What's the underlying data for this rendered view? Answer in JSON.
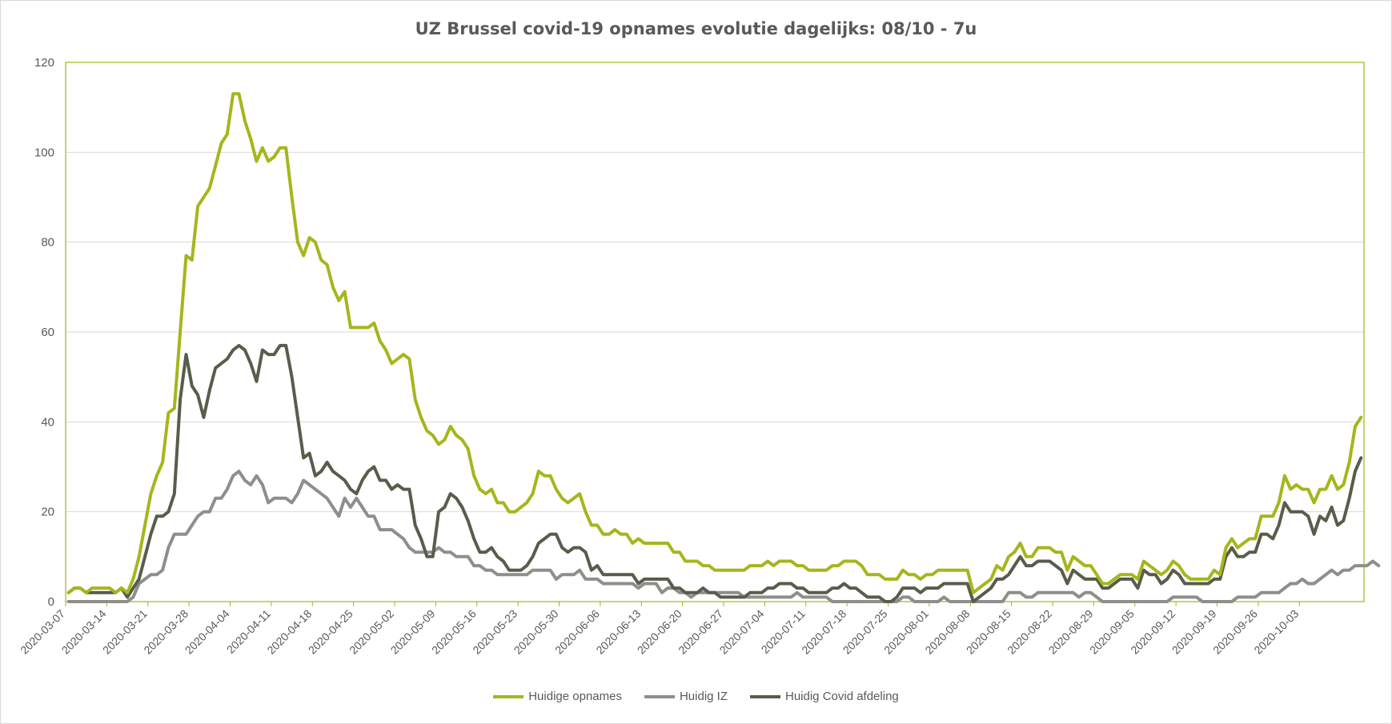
{
  "chart_data": {
    "type": "line",
    "title": "UZ Brussel covid-19 opnames evolutie dagelijks: 08/10 - 7u",
    "xlabel": "",
    "ylabel": "",
    "ylim": [
      0,
      120
    ],
    "yticks": [
      0,
      20,
      40,
      60,
      80,
      100,
      120
    ],
    "x_start": "2020-03-07",
    "x_tick_labels": [
      "2020-03-07",
      "2020-03-14",
      "2020-03-21",
      "2020-03-28",
      "2020-04-04",
      "2020-04-11",
      "2020-04-18",
      "2020-04-25",
      "2020-05-02",
      "2020-05-09",
      "2020-05-16",
      "2020-05-23",
      "2020-05-30",
      "2020-06-06",
      "2020-06-13",
      "2020-06-20",
      "2020-06-27",
      "2020-07-04",
      "2020-07-11",
      "2020-07-18",
      "2020-07-25",
      "2020-08-01",
      "2020-08-08",
      "2020-08-15",
      "2020-08-22",
      "2020-08-29",
      "2020-09-05",
      "2020-09-12",
      "2020-09-19",
      "2020-09-26",
      "2020-10-03"
    ],
    "grid": "horizontal",
    "legend_position": "bottom",
    "series": [
      {
        "name": "Huidige opnames",
        "color": "#a5b61c",
        "values": [
          2,
          3,
          3,
          2,
          3,
          3,
          3,
          3,
          2,
          3,
          2,
          5,
          10,
          17,
          24,
          28,
          31,
          42,
          43,
          60,
          77,
          76,
          88,
          90,
          92,
          97,
          102,
          104,
          113,
          113,
          107,
          103,
          98,
          101,
          98,
          99,
          101,
          101,
          90,
          80,
          77,
          81,
          80,
          76,
          75,
          70,
          67,
          69,
          61,
          61,
          61,
          61,
          62,
          58,
          56,
          53,
          54,
          55,
          54,
          45,
          41,
          38,
          37,
          35,
          36,
          39,
          37,
          36,
          34,
          28,
          25,
          24,
          25,
          22,
          22,
          20,
          20,
          21,
          22,
          24,
          29,
          28,
          28,
          25,
          23,
          22,
          23,
          24,
          20,
          17,
          17,
          15,
          15,
          16,
          15,
          15,
          13,
          14,
          13,
          13,
          13,
          13,
          13,
          11,
          11,
          9,
          9,
          9,
          8,
          8,
          7,
          7,
          7,
          7,
          7,
          7,
          8,
          8,
          8,
          9,
          8,
          9,
          9,
          9,
          8,
          8,
          7,
          7,
          7,
          7,
          8,
          8,
          9,
          9,
          9,
          8,
          6,
          6,
          6,
          5,
          5,
          5,
          7,
          6,
          6,
          5,
          6,
          6,
          7,
          7,
          7,
          7,
          7,
          7,
          2,
          3,
          4,
          5,
          8,
          7,
          10,
          11,
          13,
          10,
          10,
          12,
          12,
          12,
          11,
          11,
          7,
          10,
          9,
          8,
          8,
          6,
          4,
          4,
          5,
          6,
          6,
          6,
          5,
          9,
          8,
          7,
          6,
          7,
          9,
          8,
          6,
          5,
          5,
          5,
          5,
          7,
          6,
          12,
          14,
          12,
          13,
          14,
          14,
          19,
          19,
          19,
          22,
          28,
          25,
          26,
          25,
          25,
          22,
          25,
          25,
          28,
          25,
          26,
          31,
          39,
          41
        ]
      },
      {
        "name": "Huidig IZ",
        "color": "#8c8f8a",
        "values": [
          0,
          0,
          0,
          0,
          0,
          0,
          0,
          0,
          0,
          0,
          0,
          1,
          4,
          5,
          6,
          6,
          7,
          12,
          15,
          15,
          15,
          17,
          19,
          20,
          20,
          23,
          23,
          25,
          28,
          29,
          27,
          26,
          28,
          26,
          22,
          23,
          23,
          23,
          22,
          24,
          27,
          26,
          25,
          24,
          23,
          21,
          19,
          23,
          21,
          23,
          21,
          19,
          19,
          16,
          16,
          16,
          15,
          14,
          12,
          11,
          11,
          11,
          11,
          12,
          11,
          11,
          10,
          10,
          10,
          8,
          8,
          7,
          7,
          6,
          6,
          6,
          6,
          6,
          6,
          7,
          7,
          7,
          7,
          5,
          6,
          6,
          6,
          7,
          5,
          5,
          5,
          4,
          4,
          4,
          4,
          4,
          4,
          3,
          4,
          4,
          4,
          2,
          3,
          3,
          2,
          2,
          1,
          2,
          2,
          2,
          2,
          2,
          2,
          2,
          2,
          1,
          1,
          1,
          1,
          1,
          1,
          1,
          1,
          1,
          2,
          1,
          1,
          1,
          1,
          1,
          0,
          0,
          0,
          0,
          0,
          0,
          0,
          0,
          0,
          0,
          0,
          0,
          1,
          1,
          0,
          0,
          0,
          0,
          0,
          1,
          0,
          0,
          0,
          0,
          0,
          0,
          0,
          0,
          0,
          0,
          2,
          2,
          2,
          1,
          1,
          2,
          2,
          2,
          2,
          2,
          2,
          2,
          1,
          2,
          2,
          1,
          0,
          0,
          0,
          0,
          0,
          0,
          0,
          0,
          0,
          0,
          0,
          0,
          1,
          1,
          1,
          1,
          1,
          0,
          0,
          0,
          0,
          0,
          0,
          1,
          1,
          1,
          1,
          2,
          2,
          2,
          2,
          3,
          4,
          4,
          5,
          4,
          4,
          5,
          6,
          7,
          6,
          7,
          7,
          8,
          8,
          8,
          9,
          8
        ]
      },
      {
        "name": "Huidig Covid afdeling",
        "color": "#585d4b",
        "values": [
          2,
          3,
          3,
          2,
          2,
          2,
          2,
          2,
          2,
          3,
          1,
          3,
          5,
          10,
          15,
          19,
          19,
          20,
          24,
          45,
          55,
          48,
          46,
          41,
          47,
          52,
          53,
          54,
          56,
          57,
          56,
          53,
          49,
          56,
          55,
          55,
          57,
          57,
          50,
          41,
          32,
          33,
          28,
          29,
          31,
          29,
          28,
          27,
          25,
          24,
          27,
          29,
          30,
          27,
          27,
          25,
          26,
          25,
          25,
          17,
          14,
          10,
          10,
          20,
          21,
          24,
          23,
          21,
          18,
          14,
          11,
          11,
          12,
          10,
          9,
          7,
          7,
          7,
          8,
          10,
          13,
          14,
          15,
          15,
          12,
          11,
          12,
          12,
          11,
          7,
          8,
          6,
          6,
          6,
          6,
          6,
          6,
          4,
          5,
          5,
          5,
          5,
          5,
          3,
          3,
          2,
          2,
          2,
          3,
          2,
          2,
          1,
          1,
          1,
          1,
          1,
          2,
          2,
          2,
          3,
          3,
          4,
          4,
          4,
          3,
          3,
          2,
          2,
          2,
          2,
          3,
          3,
          4,
          3,
          3,
          2,
          1,
          1,
          1,
          0,
          0,
          1,
          3,
          3,
          3,
          2,
          3,
          3,
          3,
          4,
          4,
          4,
          4,
          4,
          0,
          1,
          2,
          3,
          5,
          5,
          6,
          8,
          10,
          8,
          8,
          9,
          9,
          9,
          8,
          7,
          4,
          7,
          6,
          5,
          5,
          5,
          3,
          3,
          4,
          5,
          5,
          5,
          3,
          7,
          6,
          6,
          4,
          5,
          7,
          6,
          4,
          4,
          4,
          4,
          4,
          5,
          5,
          10,
          12,
          10,
          10,
          11,
          11,
          15,
          15,
          14,
          17,
          22,
          20,
          20,
          20,
          19,
          15,
          19,
          18,
          21,
          17,
          18,
          23,
          29,
          32
        ]
      }
    ]
  }
}
